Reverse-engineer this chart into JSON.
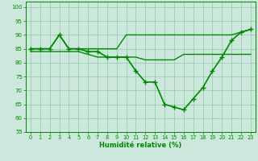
{
  "xlabel": "Humidité relative (%)",
  "bg_color": "#cce8dc",
  "grid_color": "#99ccb3",
  "line_color": "#008800",
  "xlim": [
    -0.5,
    23.5
  ],
  "ylim": [
    55,
    102
  ],
  "yticks": [
    55,
    60,
    65,
    70,
    75,
    80,
    85,
    90,
    95,
    100
  ],
  "xticks": [
    0,
    1,
    2,
    3,
    4,
    5,
    6,
    7,
    8,
    9,
    10,
    11,
    12,
    13,
    14,
    15,
    16,
    17,
    18,
    19,
    20,
    21,
    22,
    23
  ],
  "series": [
    {
      "x": [
        0,
        1,
        2,
        3,
        4,
        5,
        6,
        7,
        8,
        9,
        10,
        11,
        12,
        13,
        14,
        15,
        16,
        17,
        18,
        19,
        20,
        21,
        22,
        23
      ],
      "y": [
        85,
        85,
        85,
        90,
        85,
        85,
        84,
        84,
        82,
        82,
        82,
        77,
        73,
        73,
        65,
        64,
        63,
        67,
        71,
        77,
        82,
        88,
        91,
        92
      ],
      "marker": true,
      "lw": 1.2
    },
    {
      "x": [
        0,
        1,
        2,
        3,
        4,
        5,
        6,
        7,
        8,
        9,
        10,
        11,
        12,
        13,
        14,
        15,
        16,
        17,
        18,
        19,
        20,
        21,
        22,
        23
      ],
      "y": [
        85,
        85,
        85,
        90,
        85,
        85,
        85,
        85,
        85,
        85,
        90,
        90,
        90,
        90,
        90,
        90,
        90,
        90,
        90,
        90,
        90,
        90,
        91,
        92
      ],
      "marker": false,
      "lw": 1.0
    },
    {
      "x": [
        0,
        1,
        2,
        3,
        4,
        5,
        6,
        7,
        8,
        9,
        10,
        11,
        12,
        13,
        14,
        15,
        16,
        17,
        18,
        19,
        20,
        21,
        22,
        23
      ],
      "y": [
        84,
        84,
        84,
        84,
        84,
        84,
        83,
        82,
        82,
        82,
        82,
        82,
        81,
        81,
        81,
        81,
        83,
        83,
        83,
        83,
        83,
        83,
        83,
        83
      ],
      "marker": false,
      "lw": 1.0
    }
  ]
}
